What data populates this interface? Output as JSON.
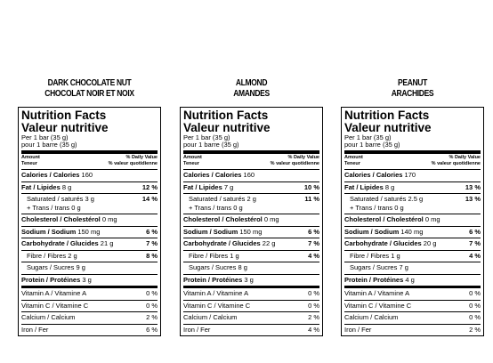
{
  "labels": [
    {
      "product": [
        "DARK CHOCOLATE NUT",
        "CHOCOLAT NOIR ET NOIX"
      ],
      "title": [
        "Nutrition Facts",
        "Valeur nutritive"
      ],
      "serving": [
        "Per 1 bar (35 g)",
        "pour 1 barre (35 g)"
      ],
      "header": {
        "amount": [
          "Amount",
          "Teneur"
        ],
        "daily_value": [
          "% Daily Value",
          "% valeur quotidienne"
        ]
      },
      "nutrients": [
        {
          "name": "Calories / Calories",
          "amount": "160"
        },
        {
          "name": "Fat / Lipides",
          "amount": "8 g",
          "dv": "12 %",
          "sub": [
            {
              "name": "Saturated / saturés",
              "amount": "3 g",
              "dv": "14 %",
              "trans": "+ Trans / trans 0 g"
            }
          ]
        },
        {
          "name": "Cholesterol / Cholestérol",
          "amount": "0 mg"
        },
        {
          "name": "Sodium / Sodium",
          "amount": "150 mg",
          "dv": "6 %"
        },
        {
          "name": "Carbohydrate / Glucides",
          "amount": "21 g",
          "dv": "7 %",
          "sub": [
            {
              "name": "Fibre / Fibres",
              "amount": "2 g",
              "dv": "8 %"
            },
            {
              "name": "Sugars / Sucres",
              "amount": "9 g"
            }
          ]
        },
        {
          "name": "Protein / Protéines",
          "amount": "3 g"
        }
      ],
      "vitamins": [
        {
          "name": "Vitamin A / Vitamine A",
          "dv": "0 %"
        },
        {
          "name": "Vitamin C / Vitamine C",
          "dv": "0 %"
        },
        {
          "name": "Calcium / Calcium",
          "dv": "2 %"
        },
        {
          "name": "Iron / Fer",
          "dv": "6 %"
        }
      ]
    },
    {
      "product": [
        "ALMOND",
        "AMANDES"
      ],
      "title": [
        "Nutrition Facts",
        "Valeur nutritive"
      ],
      "serving": [
        "Per 1 bar (35 g)",
        "pour 1 barre (35 g)"
      ],
      "header": {
        "amount": [
          "Amount",
          "Teneur"
        ],
        "daily_value": [
          "% Daily Value",
          "% valeur quotidienne"
        ]
      },
      "nutrients": [
        {
          "name": "Calories / Calories",
          "amount": "160"
        },
        {
          "name": "Fat / Lipides",
          "amount": "7 g",
          "dv": "10 %",
          "sub": [
            {
              "name": "Saturated / saturés",
              "amount": "2 g",
              "dv": "11 %",
              "trans": "+ Trans / trans 0 g"
            }
          ]
        },
        {
          "name": "Cholesterol / Cholestérol",
          "amount": "0 mg"
        },
        {
          "name": "Sodium / Sodium",
          "amount": "150 mg",
          "dv": "6 %"
        },
        {
          "name": "Carbohydrate / Glucides",
          "amount": "22 g",
          "dv": "7 %",
          "sub": [
            {
              "name": "Fibre / Fibres",
              "amount": "1 g",
              "dv": "4 %"
            },
            {
              "name": "Sugars / Sucres",
              "amount": "8 g"
            }
          ]
        },
        {
          "name": "Protein / Protéines",
          "amount": "3 g"
        }
      ],
      "vitamins": [
        {
          "name": "Vitamin A / Vitamine A",
          "dv": "0 %"
        },
        {
          "name": "Vitamin C / Vitamine C",
          "dv": "0 %"
        },
        {
          "name": "Calcium / Calcium",
          "dv": "2 %"
        },
        {
          "name": "Iron / Fer",
          "dv": "4 %"
        }
      ]
    },
    {
      "product": [
        "PEANUT",
        "ARACHIDES"
      ],
      "title": [
        "Nutrition Facts",
        "Valeur nutritive"
      ],
      "serving": [
        "Per 1 bar (35 g)",
        "pour 1 barre (35 g)"
      ],
      "header": {
        "amount": [
          "Amount",
          "Teneur"
        ],
        "daily_value": [
          "% Daily Value",
          "% valeur quotidienne"
        ]
      },
      "nutrients": [
        {
          "name": "Calories / Calories",
          "amount": "170"
        },
        {
          "name": "Fat / Lipides",
          "amount": "8 g",
          "dv": "13 %",
          "sub": [
            {
              "name": "Saturated / saturés",
              "amount": "2.5 g",
              "dv": "13 %",
              "trans": "+ Trans / trans 0 g"
            }
          ]
        },
        {
          "name": "Cholesterol / Cholestérol",
          "amount": "0 mg"
        },
        {
          "name": "Sodium / Sodium",
          "amount": "140 mg",
          "dv": "6 %"
        },
        {
          "name": "Carbohydrate / Glucides",
          "amount": "20 g",
          "dv": "7 %",
          "sub": [
            {
              "name": "Fibre / Fibres",
              "amount": "1 g",
              "dv": "4 %"
            },
            {
              "name": "Sugars / Sucres",
              "amount": "7 g"
            }
          ]
        },
        {
          "name": "Protein / Protéines",
          "amount": "4 g"
        }
      ],
      "vitamins": [
        {
          "name": "Vitamin A / Vitamine A",
          "dv": "0 %"
        },
        {
          "name": "Vitamin C / Vitamine C",
          "dv": "0 %"
        },
        {
          "name": "Calcium / Calcium",
          "dv": "0 %"
        },
        {
          "name": "Iron / Fer",
          "dv": "2 %"
        }
      ]
    }
  ]
}
